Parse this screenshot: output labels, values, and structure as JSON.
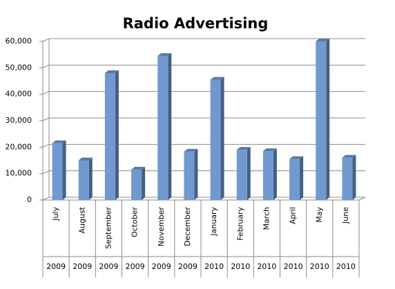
{
  "chart_data": {
    "type": "bar",
    "title": "Radio Advertising",
    "categories": [
      "July",
      "August",
      "September",
      "October",
      "November",
      "December",
      "January",
      "February",
      "March",
      "April",
      "May",
      "June"
    ],
    "years": [
      "2009",
      "2009",
      "2009",
      "2009",
      "2009",
      "2009",
      "2010",
      "2010",
      "2010",
      "2010",
      "2010",
      "2010"
    ],
    "values": [
      21500,
      15000,
      48000,
      11500,
      54500,
      18300,
      45500,
      19000,
      18500,
      15500,
      60000,
      16000
    ],
    "color": "#7199d0",
    "ylim": [
      0,
      60000
    ],
    "yticks": [
      0,
      {
        "value": 10000,
        "label": "10,000"
      },
      {
        "value": 20000,
        "label": "20,000"
      },
      {
        "value": 30000,
        "label": "30,000"
      },
      {
        "value": 40000,
        "label": "40,000"
      },
      {
        "value": 50000,
        "label": "50,000"
      },
      {
        "value": 60000,
        "label": "60,000"
      }
    ],
    "grid": true
  }
}
